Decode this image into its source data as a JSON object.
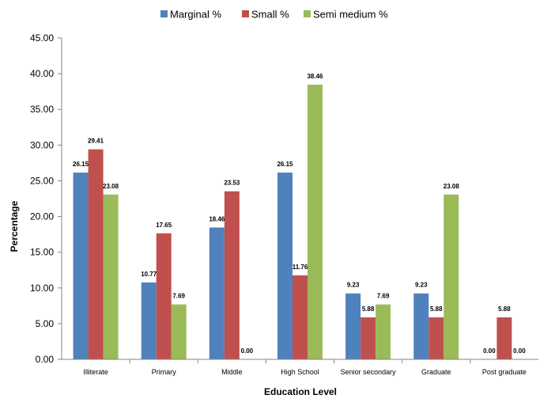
{
  "chart_data": {
    "type": "bar",
    "title": "",
    "xlabel": "Education Level",
    "ylabel": "Percentage",
    "ylim": [
      0,
      45
    ],
    "ytick_step": 5,
    "ytick_labels": [
      "0.00",
      "5.00",
      "10.00",
      "15.00",
      "20.00",
      "25.00",
      "30.00",
      "35.00",
      "40.00",
      "45.00"
    ],
    "grid": false,
    "legend_position": "top",
    "categories": [
      "Illiterate",
      "Primary",
      "Middle",
      "High School",
      "Senior secondary",
      "Graduate",
      "Post graduate"
    ],
    "series": [
      {
        "name": "Marginal %",
        "color": "#4F81BD",
        "values": [
          26.15,
          10.77,
          18.46,
          26.15,
          9.23,
          9.23,
          0.0
        ],
        "labels": [
          "26.15",
          "10.77",
          "18.46",
          "26.15",
          "9.23",
          "9.23",
          "0.00"
        ]
      },
      {
        "name": "Small %",
        "color": "#C0504D",
        "values": [
          29.41,
          17.65,
          23.53,
          11.76,
          5.88,
          5.88,
          5.88
        ],
        "labels": [
          "29.41",
          "17.65",
          "23.53",
          "11.76",
          "5.88",
          "5.88",
          "5.88"
        ]
      },
      {
        "name": "Semi medium %",
        "color": "#9BBB59",
        "values": [
          23.08,
          7.69,
          0.0,
          38.46,
          7.69,
          23.08,
          0.0
        ],
        "labels": [
          "23.08",
          "7.69",
          "0.00",
          "38.46",
          "7.69",
          "23.08",
          "0.00"
        ]
      }
    ]
  }
}
